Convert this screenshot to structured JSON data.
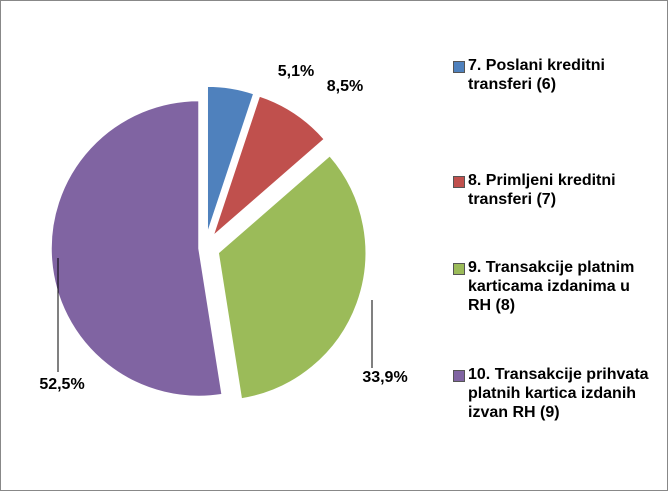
{
  "chart_data": {
    "type": "pie",
    "categories": [
      "7. Poslani kreditni transferi  (6)",
      "8. Primljeni kreditni transferi (7)",
      "9. Transakcije platnim karticama izdanima u RH (8)",
      "10. Transakcije prihvata platnih kartica izdanih izvan RH (9)"
    ],
    "values": [
      5.1,
      8.5,
      33.9,
      52.5
    ],
    "value_labels": [
      "5,1%",
      "8,5%",
      "33,9%",
      "52,5%"
    ],
    "colors": [
      "#4f81bd",
      "#c0504d",
      "#9bbb59",
      "#8064a2"
    ],
    "legend": "right"
  }
}
